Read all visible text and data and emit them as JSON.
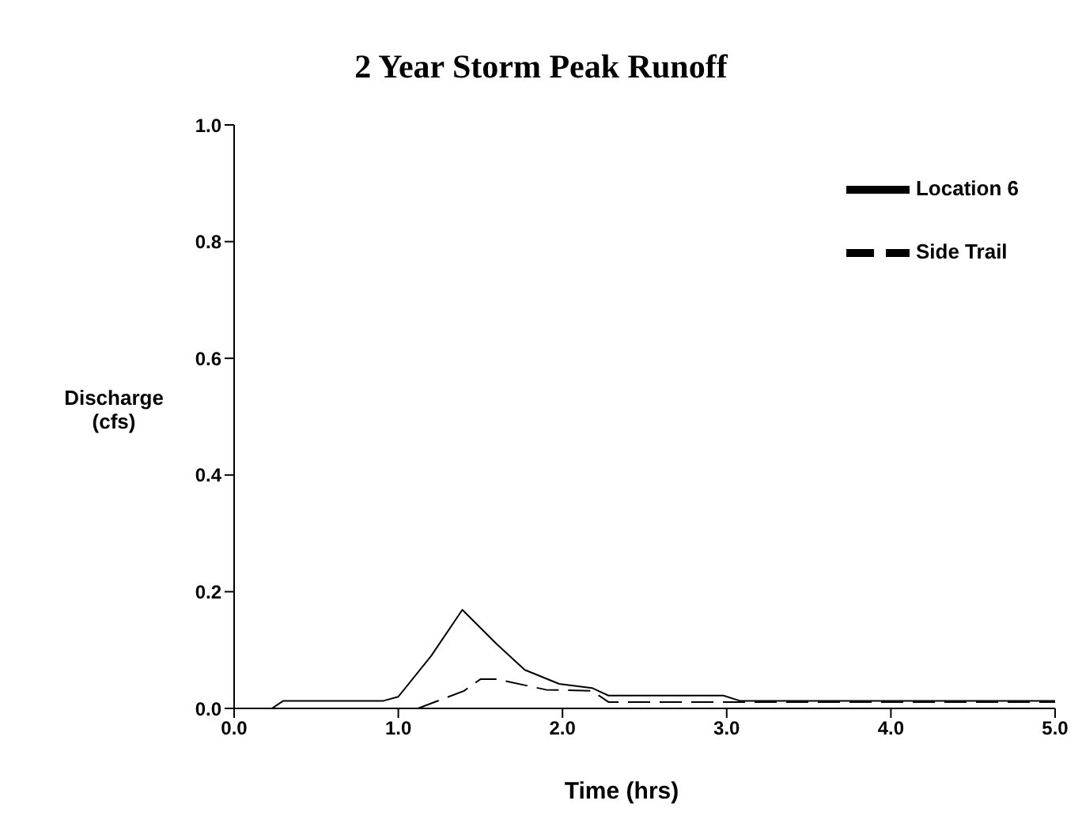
{
  "chart_data": {
    "type": "line",
    "title": "2 Year Storm Peak Runoff",
    "xlabel": "Time (hrs)",
    "ylabel": "Discharge\n(cfs)",
    "xlim": [
      0,
      5
    ],
    "ylim": [
      0,
      1
    ],
    "xticks": [
      {
        "value": 0,
        "label": "0.0"
      },
      {
        "value": 1,
        "label": "1.0"
      },
      {
        "value": 2,
        "label": "2.0"
      },
      {
        "value": 3,
        "label": "3.0"
      },
      {
        "value": 4,
        "label": "4.0"
      },
      {
        "value": 5,
        "label": "5.0"
      }
    ],
    "yticks": [
      {
        "value": 0,
        "label": "0.0"
      },
      {
        "value": 0.2,
        "label": "0.2"
      },
      {
        "value": 0.4,
        "label": "0.4"
      },
      {
        "value": 0.6,
        "label": "0.6"
      },
      {
        "value": 0.8,
        "label": "0.8"
      },
      {
        "value": 1,
        "label": "1.0"
      }
    ],
    "grid": false,
    "legend": "top right",
    "marker": "none",
    "series": [
      {
        "name": "Location 6",
        "color": "#000000",
        "line_style": "solid",
        "x": [
          0.23,
          0.3,
          0.91,
          1.0,
          1.2,
          1.39,
          1.6,
          1.77,
          1.98,
          2.18,
          2.28,
          2.98,
          3.08,
          5.0
        ],
        "values": [
          0,
          0.013,
          0.013,
          0.02,
          0.09,
          0.169,
          0.11,
          0.066,
          0.042,
          0.035,
          0.022,
          0.022,
          0.013,
          0.013
        ]
      },
      {
        "name": "Side Trail",
        "color": "#000000",
        "line_style": "dashed",
        "x": [
          1.12,
          1.4,
          1.5,
          1.6,
          1.9,
          2.18,
          2.28,
          5.0
        ],
        "values": [
          0,
          0.03,
          0.05,
          0.05,
          0.032,
          0.03,
          0.011,
          0.011
        ]
      }
    ]
  }
}
